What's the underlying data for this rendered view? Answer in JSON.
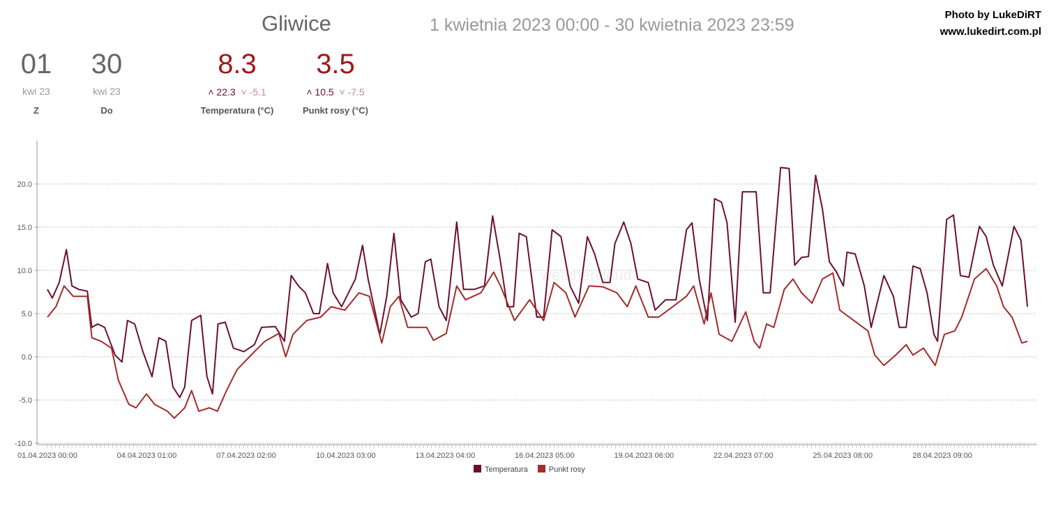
{
  "header": {
    "city": "Gliwice",
    "range": "1 kwietnia 2023 00:00 - 30 kwietnia 2023 23:59",
    "credit1": "Photo by LukeDiRT",
    "credit2": "www.lukedirt.com.pl"
  },
  "stats": {
    "from": {
      "value": "01",
      "sub": "kwi 23",
      "label": "Z"
    },
    "to": {
      "value": "30",
      "sub": "kwi 23",
      "label": "Do"
    },
    "temp": {
      "value": "8.3",
      "max": "22.3",
      "min": "-5.1",
      "label": "Temperatura (°C)"
    },
    "dew": {
      "value": "3.5",
      "max": "10.5",
      "min": "-7.5",
      "label": "Punkt rosy (°C)"
    }
  },
  "watermark": "weathercloud",
  "chart_data": {
    "type": "line",
    "title": "",
    "xlabel": "",
    "ylabel": "",
    "ylim": [
      -10,
      25
    ],
    "xlim_days": [
      0,
      30
    ],
    "yticks": [
      -10,
      -5,
      0,
      5,
      10,
      15,
      20
    ],
    "ytick_labels": [
      "-10.0",
      "-5.0",
      "0.0",
      "5.0",
      "10.0",
      "15.0",
      "20.0"
    ],
    "xtick_days": [
      0,
      3.04,
      6.08,
      9.13,
      12.17,
      15.21,
      18.25,
      21.29,
      24.33,
      27.38
    ],
    "xtick_labels": [
      "01.04.2023 00:00",
      "04.04.2023 01:00",
      "07.04.2023 02:00",
      "10.04.2023 03:00",
      "13.04.2023 04:00",
      "16.04.2023 05:00",
      "19.04.2023 06:00",
      "22.04.2023 07:00",
      "25.04.2023 08:00",
      "28.04.2023 09:00"
    ],
    "grid": true,
    "legend": "bottom-center",
    "series": [
      {
        "name": "Temperatura",
        "color": "#6b0f2e",
        "points": [
          [
            0,
            7.8
          ],
          [
            0.15,
            6.8
          ],
          [
            0.36,
            8.6
          ],
          [
            0.58,
            12.4
          ],
          [
            0.75,
            8.2
          ],
          [
            0.96,
            7.8
          ],
          [
            1.22,
            7.6
          ],
          [
            1.36,
            3.4
          ],
          [
            1.54,
            3.8
          ],
          [
            1.75,
            3.4
          ],
          [
            2.07,
            0.2
          ],
          [
            2.28,
            -0.6
          ],
          [
            2.45,
            4.2
          ],
          [
            2.67,
            3.8
          ],
          [
            2.92,
            0.6
          ],
          [
            3.2,
            -2.3
          ],
          [
            3.41,
            2.2
          ],
          [
            3.62,
            1.8
          ],
          [
            3.84,
            -3.5
          ],
          [
            4.05,
            -4.7
          ],
          [
            4.2,
            -3.5
          ],
          [
            4.41,
            4.2
          ],
          [
            4.69,
            4.8
          ],
          [
            4.88,
            -2.3
          ],
          [
            5.05,
            -4.3
          ],
          [
            5.22,
            3.8
          ],
          [
            5.44,
            4.0
          ],
          [
            5.69,
            1.0
          ],
          [
            6.01,
            0.6
          ],
          [
            6.33,
            1.4
          ],
          [
            6.55,
            3.4
          ],
          [
            6.97,
            3.5
          ],
          [
            7.25,
            1.8
          ],
          [
            7.46,
            9.4
          ],
          [
            7.68,
            8.2
          ],
          [
            7.89,
            7.4
          ],
          [
            8.14,
            5.0
          ],
          [
            8.32,
            5.0
          ],
          [
            8.57,
            10.8
          ],
          [
            8.74,
            7.4
          ],
          [
            9.0,
            5.8
          ],
          [
            9.42,
            9.0
          ],
          [
            9.64,
            12.9
          ],
          [
            9.81,
            9.0
          ],
          [
            10.17,
            2.6
          ],
          [
            10.38,
            7.0
          ],
          [
            10.6,
            14.3
          ],
          [
            10.81,
            6.6
          ],
          [
            11.13,
            4.6
          ],
          [
            11.34,
            5.0
          ],
          [
            11.56,
            11.0
          ],
          [
            11.73,
            11.3
          ],
          [
            11.98,
            5.8
          ],
          [
            12.2,
            4.2
          ],
          [
            12.52,
            15.6
          ],
          [
            12.73,
            7.8
          ],
          [
            13.05,
            7.8
          ],
          [
            13.37,
            8.2
          ],
          [
            13.62,
            16.3
          ],
          [
            13.84,
            11.5
          ],
          [
            14.07,
            5.8
          ],
          [
            14.26,
            5.8
          ],
          [
            14.43,
            14.3
          ],
          [
            14.65,
            13.9
          ],
          [
            14.97,
            4.6
          ],
          [
            15.18,
            4.6
          ],
          [
            15.44,
            14.7
          ],
          [
            15.71,
            13.9
          ],
          [
            15.99,
            8.2
          ],
          [
            16.25,
            6.2
          ],
          [
            16.52,
            13.9
          ],
          [
            16.74,
            11.9
          ],
          [
            16.99,
            8.6
          ],
          [
            17.21,
            8.6
          ],
          [
            17.36,
            13.1
          ],
          [
            17.63,
            15.6
          ],
          [
            17.85,
            13.1
          ],
          [
            18.06,
            9.0
          ],
          [
            18.38,
            8.6
          ],
          [
            18.59,
            5.4
          ],
          [
            18.91,
            6.6
          ],
          [
            19.23,
            6.6
          ],
          [
            19.55,
            14.7
          ],
          [
            19.72,
            15.5
          ],
          [
            19.94,
            9.0
          ],
          [
            20.19,
            4.2
          ],
          [
            20.41,
            18.3
          ],
          [
            20.62,
            17.9
          ],
          [
            20.79,
            15.5
          ],
          [
            21.04,
            4.0
          ],
          [
            21.26,
            19.1
          ],
          [
            21.68,
            19.1
          ],
          [
            21.9,
            7.4
          ],
          [
            22.11,
            7.4
          ],
          [
            22.43,
            21.9
          ],
          [
            22.69,
            21.8
          ],
          [
            22.86,
            10.6
          ],
          [
            23.07,
            11.5
          ],
          [
            23.28,
            11.6
          ],
          [
            23.5,
            21.0
          ],
          [
            23.71,
            17.1
          ],
          [
            23.92,
            11.0
          ],
          [
            24.14,
            9.8
          ],
          [
            24.35,
            8.2
          ],
          [
            24.46,
            12.1
          ],
          [
            24.71,
            11.9
          ],
          [
            24.99,
            8.2
          ],
          [
            25.2,
            3.4
          ],
          [
            25.59,
            9.4
          ],
          [
            25.88,
            7.0
          ],
          [
            26.06,
            3.4
          ],
          [
            26.27,
            3.4
          ],
          [
            26.48,
            10.5
          ],
          [
            26.7,
            10.2
          ],
          [
            26.91,
            7.4
          ],
          [
            27.12,
            2.6
          ],
          [
            27.23,
            1.8
          ],
          [
            27.51,
            15.9
          ],
          [
            27.72,
            16.4
          ],
          [
            27.93,
            9.4
          ],
          [
            28.19,
            9.2
          ],
          [
            28.51,
            15.1
          ],
          [
            28.72,
            13.9
          ],
          [
            28.94,
            10.6
          ],
          [
            29.21,
            8.2
          ],
          [
            29.57,
            15.1
          ],
          [
            29.78,
            13.5
          ],
          [
            29.98,
            5.8
          ]
        ]
      },
      {
        "name": "Punkt rosy",
        "color": "#a52a2a",
        "points": [
          [
            0,
            4.6
          ],
          [
            0.26,
            5.8
          ],
          [
            0.51,
            8.2
          ],
          [
            0.79,
            7.0
          ],
          [
            1.22,
            7.0
          ],
          [
            1.36,
            2.2
          ],
          [
            1.64,
            1.8
          ],
          [
            1.96,
            1.0
          ],
          [
            2.17,
            -2.7
          ],
          [
            2.49,
            -5.5
          ],
          [
            2.71,
            -5.9
          ],
          [
            3.03,
            -4.3
          ],
          [
            3.28,
            -5.5
          ],
          [
            3.67,
            -6.3
          ],
          [
            3.88,
            -7.1
          ],
          [
            4.2,
            -5.9
          ],
          [
            4.41,
            -3.9
          ],
          [
            4.63,
            -6.3
          ],
          [
            4.95,
            -5.9
          ],
          [
            5.2,
            -6.3
          ],
          [
            5.48,
            -3.9
          ],
          [
            5.8,
            -1.5
          ],
          [
            6.23,
            0.2
          ],
          [
            6.65,
            1.8
          ],
          [
            7.08,
            2.7
          ],
          [
            7.29,
            0.0
          ],
          [
            7.51,
            2.6
          ],
          [
            7.93,
            4.2
          ],
          [
            8.36,
            4.6
          ],
          [
            8.68,
            5.8
          ],
          [
            9.1,
            5.4
          ],
          [
            9.53,
            7.4
          ],
          [
            9.85,
            7.0
          ],
          [
            10.23,
            1.6
          ],
          [
            10.49,
            5.8
          ],
          [
            10.75,
            7.0
          ],
          [
            11.02,
            3.4
          ],
          [
            11.34,
            3.4
          ],
          [
            11.6,
            3.4
          ],
          [
            11.81,
            1.9
          ],
          [
            12.2,
            2.7
          ],
          [
            12.52,
            8.2
          ],
          [
            12.79,
            6.6
          ],
          [
            13.26,
            7.4
          ],
          [
            13.65,
            9.8
          ],
          [
            13.86,
            8.2
          ],
          [
            14.29,
            4.2
          ],
          [
            14.75,
            6.6
          ],
          [
            15.18,
            4.2
          ],
          [
            15.5,
            8.6
          ],
          [
            15.86,
            7.4
          ],
          [
            16.14,
            4.6
          ],
          [
            16.57,
            8.2
          ],
          [
            16.99,
            8.1
          ],
          [
            17.42,
            7.4
          ],
          [
            17.74,
            5.8
          ],
          [
            18.0,
            8.2
          ],
          [
            18.38,
            4.6
          ],
          [
            18.7,
            4.6
          ],
          [
            19.13,
            5.8
          ],
          [
            19.55,
            7.0
          ],
          [
            19.77,
            8.2
          ],
          [
            20.09,
            3.8
          ],
          [
            20.3,
            7.4
          ],
          [
            20.55,
            2.6
          ],
          [
            20.94,
            1.8
          ],
          [
            21.36,
            5.2
          ],
          [
            21.62,
            1.8
          ],
          [
            21.79,
            1.0
          ],
          [
            22.0,
            3.8
          ],
          [
            22.22,
            3.4
          ],
          [
            22.54,
            7.8
          ],
          [
            22.81,
            9.0
          ],
          [
            23.07,
            7.4
          ],
          [
            23.39,
            6.2
          ],
          [
            23.71,
            9.0
          ],
          [
            24.03,
            9.7
          ],
          [
            24.24,
            5.4
          ],
          [
            24.67,
            4.2
          ],
          [
            25.1,
            3.0
          ],
          [
            25.31,
            0.2
          ],
          [
            25.59,
            -1.0
          ],
          [
            25.95,
            0.2
          ],
          [
            26.27,
            1.4
          ],
          [
            26.48,
            0.2
          ],
          [
            26.8,
            1.0
          ],
          [
            27.16,
            -1.0
          ],
          [
            27.44,
            2.6
          ],
          [
            27.76,
            3.0
          ],
          [
            27.97,
            4.6
          ],
          [
            28.36,
            9.0
          ],
          [
            28.72,
            10.2
          ],
          [
            29.04,
            8.2
          ],
          [
            29.25,
            5.8
          ],
          [
            29.51,
            4.6
          ],
          [
            29.81,
            1.6
          ],
          [
            29.98,
            1.8
          ]
        ]
      }
    ]
  }
}
